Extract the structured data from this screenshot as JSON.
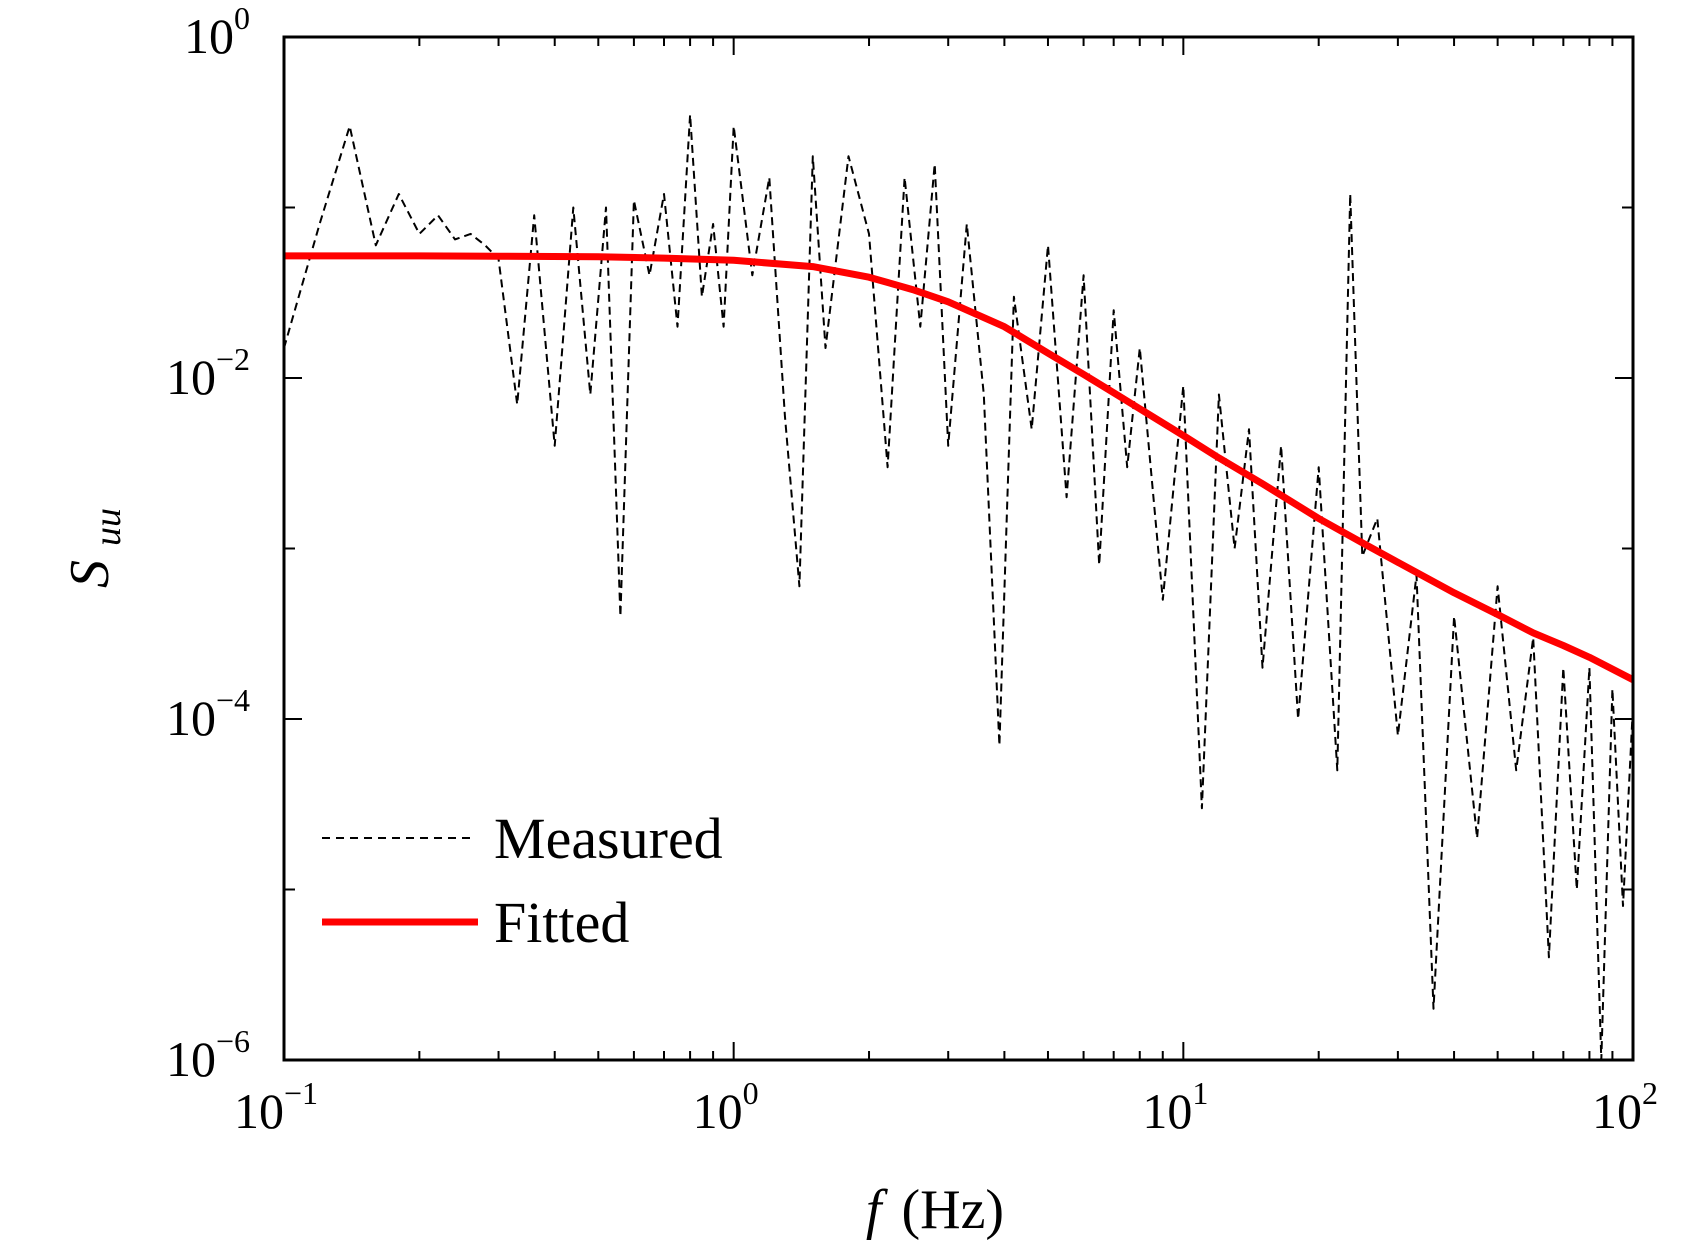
{
  "chart_data": {
    "type": "line",
    "title": "",
    "xlabel": "f (Hz)",
    "xlabel_var": "f",
    "xlabel_unit": "(Hz)",
    "ylabel": "S_uu",
    "ylabel_var": "S",
    "ylabel_sub": "uu",
    "xscale": "log",
    "yscale": "log",
    "xlim": [
      0.1,
      100
    ],
    "ylim": [
      1e-06,
      1
    ],
    "x_ticks": [
      {
        "base": "10",
        "exp": "−1",
        "value": 0.1
      },
      {
        "base": "10",
        "exp": "0",
        "value": 1
      },
      {
        "base": "10",
        "exp": "1",
        "value": 10
      },
      {
        "base": "10",
        "exp": "2",
        "value": 100
      }
    ],
    "y_ticks": [
      {
        "base": "10",
        "exp": "0",
        "value": 1
      },
      {
        "base": "10",
        "exp": "−2",
        "value": 0.01
      },
      {
        "base": "10",
        "exp": "−4",
        "value": 0.0001
      },
      {
        "base": "10",
        "exp": "−6",
        "value": 1e-06
      }
    ],
    "legend_position": "lower-left",
    "series": [
      {
        "name": "Measured",
        "style": "dashed",
        "color": "#000000",
        "x": [
          0.1,
          0.12,
          0.14,
          0.16,
          0.18,
          0.2,
          0.22,
          0.24,
          0.26,
          0.28,
          0.3,
          0.33,
          0.36,
          0.4,
          0.44,
          0.48,
          0.52,
          0.56,
          0.6,
          0.65,
          0.7,
          0.75,
          0.8,
          0.85,
          0.9,
          0.95,
          1.0,
          1.1,
          1.2,
          1.3,
          1.4,
          1.5,
          1.6,
          1.8,
          2.0,
          2.2,
          2.4,
          2.6,
          2.8,
          3.0,
          3.3,
          3.6,
          3.9,
          4.2,
          4.6,
          5.0,
          5.5,
          6.0,
          6.5,
          7.0,
          7.5,
          8.0,
          9.0,
          10.0,
          11.0,
          12.0,
          13.0,
          14.0,
          15.0,
          16.5,
          18.0,
          20.0,
          22.0,
          23.5,
          25.0,
          27.0,
          30.0,
          33.0,
          36.0,
          40.0,
          45.0,
          50.0,
          55.0,
          60.0,
          65.0,
          70.0,
          75.0,
          80.0,
          85.0,
          90.0,
          95.0,
          100.0
        ],
        "y": [
          0.015,
          0.08,
          0.3,
          0.06,
          0.12,
          0.07,
          0.09,
          0.065,
          0.07,
          0.06,
          0.05,
          0.007,
          0.09,
          0.004,
          0.1,
          0.008,
          0.1,
          0.0004,
          0.11,
          0.04,
          0.12,
          0.02,
          0.35,
          0.03,
          0.08,
          0.02,
          0.3,
          0.04,
          0.15,
          0.006,
          0.0006,
          0.2,
          0.015,
          0.2,
          0.07,
          0.003,
          0.15,
          0.02,
          0.18,
          0.004,
          0.08,
          0.008,
          7e-05,
          0.03,
          0.005,
          0.06,
          0.002,
          0.04,
          0.0008,
          0.025,
          0.003,
          0.015,
          0.0005,
          0.009,
          3e-05,
          0.008,
          0.001,
          0.005,
          0.0002,
          0.004,
          0.0001,
          0.003,
          5e-05,
          0.12,
          0.0009,
          0.0015,
          8e-05,
          0.0007,
          2e-06,
          0.0004,
          2e-05,
          0.0006,
          5e-05,
          0.0003,
          4e-06,
          0.0002,
          1e-05,
          0.0002,
          1e-06,
          0.00015,
          8e-06,
          0.00012
        ]
      },
      {
        "name": "Fitted",
        "style": "solid",
        "color": "#ff0000",
        "x": [
          0.1,
          0.2,
          0.3,
          0.5,
          0.7,
          1.0,
          1.5,
          2.0,
          2.5,
          3.0,
          4.0,
          5.0,
          6.0,
          7.0,
          8.0,
          10.0,
          12.0,
          15.0,
          20.0,
          25.0,
          30.0,
          40.0,
          50.0,
          60.0,
          70.0,
          80.0,
          100.0
        ],
        "y": [
          0.052,
          0.052,
          0.0518,
          0.0514,
          0.0505,
          0.049,
          0.045,
          0.039,
          0.033,
          0.028,
          0.02,
          0.014,
          0.0105,
          0.0082,
          0.0066,
          0.0046,
          0.0034,
          0.0024,
          0.0015,
          0.00108,
          0.00083,
          0.00055,
          0.00041,
          0.00032,
          0.00027,
          0.00023,
          0.00017
        ]
      }
    ]
  }
}
